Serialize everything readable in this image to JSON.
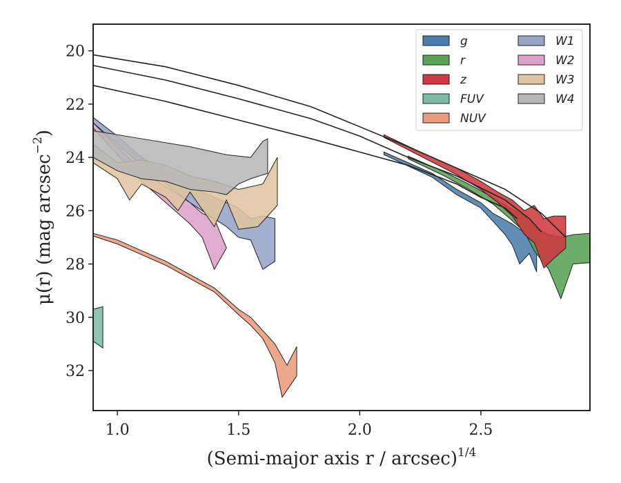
{
  "chart_data": {
    "type": "area",
    "xlabel": "(Semi-major axis r / arcsec)",
    "xlabel_italic": "r",
    "xlabel_sup": "1/4",
    "ylabel": "μ(r) (mag arcsec",
    "ylabel_sup": "−2",
    "ylabel_tail": ")",
    "xlim": [
      0.9,
      2.95
    ],
    "ylim": [
      33.5,
      19.0
    ],
    "x_ticks": [
      1.0,
      1.5,
      2.0,
      2.5
    ],
    "x_tick_labels": [
      "1.0",
      "1.5",
      "2.0",
      "2.5"
    ],
    "y_ticks": [
      20,
      22,
      24,
      26,
      28,
      30,
      32
    ],
    "y_tick_labels": [
      "20",
      "22",
      "24",
      "26",
      "28",
      "30",
      "32"
    ],
    "grid": false,
    "legend_position": "top-right",
    "legend_columns": 2,
    "series": [
      {
        "name": "g",
        "color": "#4c7eab",
        "upper": [
          [
            2.1,
            23.8
          ],
          [
            2.3,
            24.6
          ],
          [
            2.4,
            25.2
          ],
          [
            2.5,
            25.7
          ],
          [
            2.55,
            26.1
          ],
          [
            2.6,
            26.35
          ],
          [
            2.63,
            26.5
          ],
          [
            2.66,
            26.7
          ],
          [
            2.7,
            26.9
          ],
          [
            2.73,
            27.2
          ]
        ],
        "lower": [
          [
            2.1,
            23.9
          ],
          [
            2.3,
            24.75
          ],
          [
            2.4,
            25.4
          ],
          [
            2.5,
            25.9
          ],
          [
            2.55,
            26.4
          ],
          [
            2.6,
            26.9
          ],
          [
            2.63,
            27.3
          ],
          [
            2.66,
            28.0
          ],
          [
            2.7,
            27.6
          ],
          [
            2.73,
            28.3
          ]
        ]
      },
      {
        "name": "r",
        "color": "#5aa055",
        "upper": [
          [
            2.2,
            23.95
          ],
          [
            2.35,
            24.55
          ],
          [
            2.45,
            25.0
          ],
          [
            2.55,
            25.5
          ],
          [
            2.62,
            25.9
          ],
          [
            2.68,
            26.2
          ],
          [
            2.72,
            26.6
          ],
          [
            2.78,
            26.9
          ],
          [
            2.83,
            27.0
          ],
          [
            2.88,
            26.9
          ],
          [
            2.95,
            26.85
          ]
        ],
        "lower": [
          [
            2.2,
            24.05
          ],
          [
            2.35,
            24.7
          ],
          [
            2.45,
            25.2
          ],
          [
            2.55,
            25.75
          ],
          [
            2.62,
            26.3
          ],
          [
            2.68,
            26.8
          ],
          [
            2.72,
            27.5
          ],
          [
            2.78,
            28.2
          ],
          [
            2.83,
            29.3
          ],
          [
            2.88,
            28.0
          ],
          [
            2.95,
            27.95
          ]
        ]
      },
      {
        "name": "z",
        "color": "#cc3a3f",
        "upper": [
          [
            2.1,
            23.15
          ],
          [
            2.25,
            23.8
          ],
          [
            2.4,
            24.4
          ],
          [
            2.5,
            24.9
          ],
          [
            2.57,
            25.3
          ],
          [
            2.63,
            25.6
          ],
          [
            2.68,
            26.0
          ],
          [
            2.72,
            25.8
          ],
          [
            2.76,
            26.3
          ],
          [
            2.8,
            26.2
          ],
          [
            2.85,
            26.2
          ]
        ],
        "lower": [
          [
            2.1,
            23.25
          ],
          [
            2.25,
            23.95
          ],
          [
            2.4,
            24.65
          ],
          [
            2.5,
            25.2
          ],
          [
            2.57,
            25.7
          ],
          [
            2.63,
            26.2
          ],
          [
            2.68,
            26.9
          ],
          [
            2.72,
            27.2
          ],
          [
            2.76,
            28.15
          ],
          [
            2.8,
            27.8
          ],
          [
            2.85,
            27.4
          ]
        ]
      },
      {
        "name": "FUV",
        "color": "#7dbba5",
        "upper": [
          [
            0.9,
            29.7
          ],
          [
            0.94,
            29.6
          ]
        ],
        "lower": [
          [
            0.9,
            30.9
          ],
          [
            0.94,
            31.15
          ]
        ]
      },
      {
        "name": "NUV",
        "color": "#e99c7c",
        "upper": [
          [
            0.9,
            26.85
          ],
          [
            1.0,
            27.1
          ],
          [
            1.1,
            27.5
          ],
          [
            1.2,
            27.9
          ],
          [
            1.3,
            28.4
          ],
          [
            1.4,
            28.9
          ],
          [
            1.5,
            29.7
          ],
          [
            1.55,
            30.0
          ],
          [
            1.6,
            30.5
          ],
          [
            1.65,
            31.0
          ],
          [
            1.7,
            31.8
          ],
          [
            1.74,
            31.1
          ]
        ],
        "lower": [
          [
            0.9,
            26.95
          ],
          [
            1.0,
            27.25
          ],
          [
            1.1,
            27.65
          ],
          [
            1.2,
            28.05
          ],
          [
            1.3,
            28.55
          ],
          [
            1.4,
            29.05
          ],
          [
            1.5,
            29.9
          ],
          [
            1.55,
            30.3
          ],
          [
            1.6,
            30.8
          ],
          [
            1.65,
            31.7
          ],
          [
            1.68,
            33.0
          ],
          [
            1.74,
            32.2
          ]
        ]
      },
      {
        "name": "W1",
        "color": "#97a4c7",
        "upper": [
          [
            0.9,
            22.5
          ],
          [
            1.0,
            23.2
          ],
          [
            1.1,
            24.0
          ],
          [
            1.2,
            24.6
          ],
          [
            1.3,
            25.1
          ],
          [
            1.4,
            25.5
          ],
          [
            1.5,
            25.9
          ],
          [
            1.55,
            26.3
          ],
          [
            1.6,
            26.2
          ],
          [
            1.65,
            26.3
          ]
        ],
        "lower": [
          [
            0.9,
            22.7
          ],
          [
            1.0,
            23.5
          ],
          [
            1.1,
            24.3
          ],
          [
            1.2,
            25.0
          ],
          [
            1.3,
            25.7
          ],
          [
            1.4,
            26.3
          ],
          [
            1.45,
            26.6
          ],
          [
            1.5,
            27.0
          ],
          [
            1.55,
            27.1
          ],
          [
            1.6,
            28.2
          ],
          [
            1.65,
            27.9
          ]
        ]
      },
      {
        "name": "W2",
        "color": "#dca1c8",
        "upper": [
          [
            0.9,
            22.7
          ],
          [
            1.0,
            23.6
          ],
          [
            1.1,
            24.5
          ],
          [
            1.2,
            25.1
          ],
          [
            1.3,
            25.7
          ],
          [
            1.35,
            26.1
          ],
          [
            1.4,
            26.3
          ]
        ],
        "lower": [
          [
            0.9,
            22.9
          ],
          [
            1.0,
            23.9
          ],
          [
            1.1,
            24.9
          ],
          [
            1.2,
            25.7
          ],
          [
            1.3,
            26.5
          ],
          [
            1.35,
            27.0
          ],
          [
            1.4,
            28.2
          ],
          [
            1.45,
            27.4
          ]
        ]
      },
      {
        "name": "W3",
        "color": "#dfc5a2",
        "upper": [
          [
            0.9,
            23.5
          ],
          [
            1.0,
            24.2
          ],
          [
            1.1,
            24.1
          ],
          [
            1.2,
            24.3
          ],
          [
            1.3,
            24.7
          ],
          [
            1.4,
            24.9
          ],
          [
            1.5,
            25.2
          ],
          [
            1.6,
            25.0
          ],
          [
            1.66,
            24.0
          ]
        ],
        "lower": [
          [
            0.9,
            24.2
          ],
          [
            1.0,
            24.8
          ],
          [
            1.05,
            25.6
          ],
          [
            1.1,
            25.0
          ],
          [
            1.2,
            25.5
          ],
          [
            1.25,
            26.0
          ],
          [
            1.3,
            25.3
          ],
          [
            1.4,
            26.6
          ],
          [
            1.45,
            25.6
          ],
          [
            1.5,
            26.7
          ],
          [
            1.58,
            26.6
          ],
          [
            1.66,
            25.8
          ]
        ]
      },
      {
        "name": "W4",
        "color": "#b7b7b7",
        "upper": [
          [
            0.9,
            23.0
          ],
          [
            1.1,
            23.3
          ],
          [
            1.3,
            23.6
          ],
          [
            1.45,
            23.9
          ],
          [
            1.55,
            24.0
          ],
          [
            1.6,
            23.4
          ],
          [
            1.62,
            23.3
          ]
        ],
        "lower": [
          [
            0.9,
            24.0
          ],
          [
            1.0,
            24.5
          ],
          [
            1.1,
            24.8
          ],
          [
            1.2,
            24.9
          ],
          [
            1.3,
            25.2
          ],
          [
            1.4,
            25.3
          ],
          [
            1.45,
            25.4
          ],
          [
            1.5,
            25.0
          ],
          [
            1.55,
            24.8
          ],
          [
            1.62,
            24.6
          ]
        ]
      }
    ],
    "model_lines": [
      {
        "color": "#222222",
        "points": [
          [
            0.9,
            20.15
          ],
          [
            1.2,
            20.6
          ],
          [
            1.5,
            21.3
          ],
          [
            1.8,
            22.1
          ],
          [
            2.0,
            22.85
          ],
          [
            2.2,
            23.6
          ],
          [
            2.4,
            24.4
          ],
          [
            2.6,
            25.2
          ],
          [
            2.75,
            26.1
          ],
          [
            2.85,
            27.0
          ]
        ]
      },
      {
        "color": "#222222",
        "points": [
          [
            0.9,
            20.55
          ],
          [
            1.2,
            21.1
          ],
          [
            1.5,
            21.8
          ],
          [
            1.8,
            22.55
          ],
          [
            2.0,
            23.2
          ],
          [
            2.2,
            24.0
          ],
          [
            2.4,
            24.7
          ],
          [
            2.6,
            25.6
          ],
          [
            2.7,
            26.3
          ],
          [
            2.75,
            26.8
          ]
        ]
      },
      {
        "color": "#222222",
        "points": [
          [
            0.9,
            21.3
          ],
          [
            1.2,
            21.9
          ],
          [
            1.5,
            22.6
          ],
          [
            1.8,
            23.3
          ],
          [
            2.0,
            23.8
          ],
          [
            2.2,
            24.3
          ],
          [
            2.4,
            25.0
          ],
          [
            2.5,
            25.5
          ],
          [
            2.6,
            25.9
          ],
          [
            2.65,
            26.3
          ]
        ]
      }
    ]
  }
}
